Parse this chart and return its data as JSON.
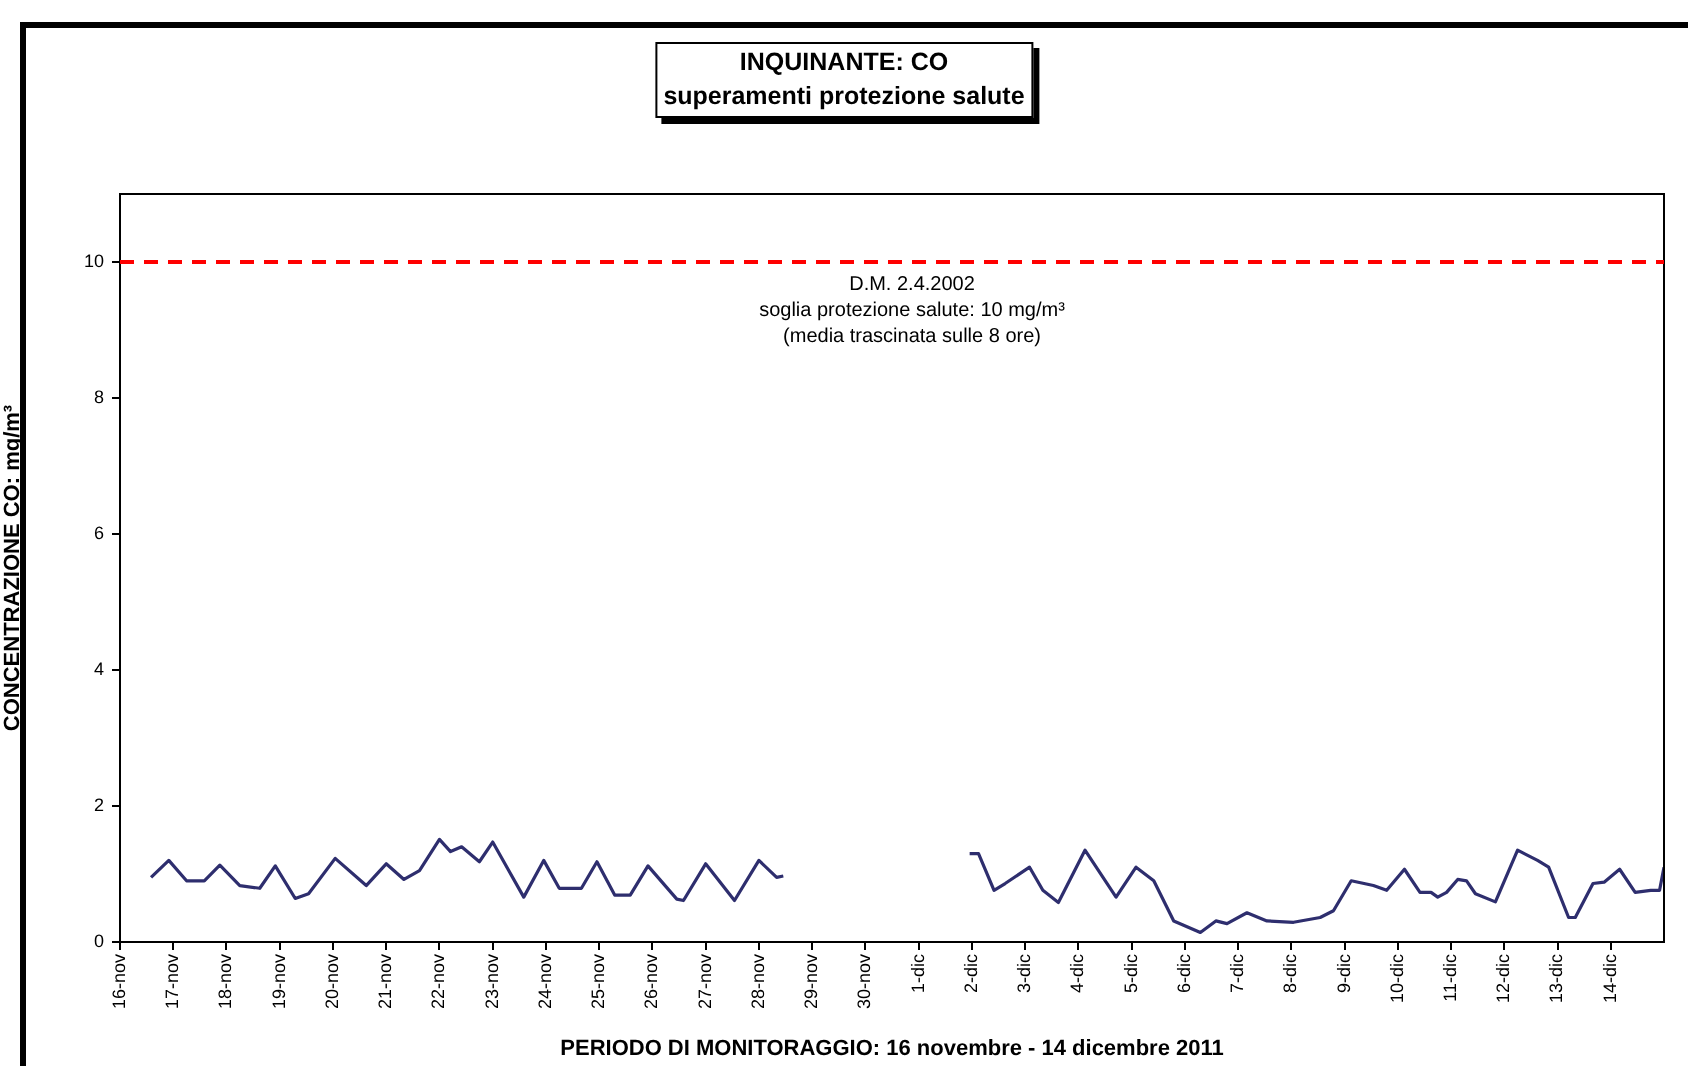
{
  "chart_data": {
    "type": "line",
    "title": "INQUINANTE: CO",
    "subtitle": "superamenti protezione salute",
    "xlabel": "PERIODO DI MONITORAGGIO: 16 novembre - 14 dicembre 2011",
    "ylabel": "CONCENTRAZIONE CO: mg/m³",
    "x": [
      "2011-11-16T14:00",
      "2011-11-16T22:00",
      "2011-11-17T06:00",
      "2011-11-17T14:00",
      "2011-11-17T21:00",
      "2011-11-18T06:00",
      "2011-11-18T15:00",
      "2011-11-18T22:00",
      "2011-11-19T07:00",
      "2011-11-19T13:00",
      "2011-11-20T01:00",
      "2011-11-20T15:00",
      "2011-11-21T00:00",
      "2011-11-21T08:00",
      "2011-11-21T15:00",
      "2011-11-22T00:00",
      "2011-11-22T05:00",
      "2011-11-22T10:00",
      "2011-11-22T18:00",
      "2011-11-23T00:00",
      "2011-11-23T14:00",
      "2011-11-23T23:00",
      "2011-11-24T06:00",
      "2011-11-24T16:00",
      "2011-11-24T23:00",
      "2011-11-25T07:00",
      "2011-11-25T14:00",
      "2011-11-25T22:00",
      "2011-11-26T11:00",
      "2011-11-26T14:00",
      "2011-11-27T00:00",
      "2011-11-27T13:00",
      "2011-11-28T00:00",
      "2011-11-28T08:00",
      "2011-11-28T11:00",
      "2011-11-30T00:00",
      "2011-12-01T23:00",
      "2011-12-02T03:00",
      "2011-12-02T10:00",
      "2011-12-02T15:00",
      "2011-12-03T02:00",
      "2011-12-03T08:00",
      "2011-12-03T15:00",
      "2011-12-04T03:00",
      "2011-12-04T17:00",
      "2011-12-05T02:00",
      "2011-12-05T10:00",
      "2011-12-05T19:00",
      "2011-12-06T07:00",
      "2011-12-06T14:00",
      "2011-12-06T19:00",
      "2011-12-07T04:00",
      "2011-12-07T13:00",
      "2011-12-08T01:00",
      "2011-12-08T13:00",
      "2011-12-08T19:00",
      "2011-12-09T03:00",
      "2011-12-09T13:00",
      "2011-12-09T19:00",
      "2011-12-10T03:00",
      "2011-12-10T10:00",
      "2011-12-10T15:00",
      "2011-12-10T18:00",
      "2011-12-10T22:00",
      "2011-12-11T03:00",
      "2011-12-11T07:00",
      "2011-12-11T11:00",
      "2011-12-11T20:00",
      "2011-12-12T06:00",
      "2011-12-12T15:00",
      "2011-12-12T20:00",
      "2011-12-13T05:00",
      "2011-12-13T08:00",
      "2011-12-13T16:00",
      "2011-12-13T21:00",
      "2011-12-14T04:00",
      "2011-12-14T11:00",
      "2011-12-14T18:00",
      "2011-12-14T22:00",
      "2011-12-15T00:00"
    ],
    "series": [
      {
        "color": "#2e2e6e",
        "values": [
          0.95,
          1.2,
          0.9,
          0.9,
          1.13,
          0.83,
          0.79,
          1.12,
          0.64,
          0.71,
          1.23,
          0.83,
          1.15,
          0.92,
          1.05,
          1.51,
          1.33,
          1.4,
          1.18,
          1.47,
          0.66,
          1.2,
          0.79,
          0.79,
          1.18,
          0.69,
          0.69,
          1.12,
          0.63,
          0.61,
          1.15,
          0.61,
          1.2,
          0.95,
          0.97,
          null,
          1.3,
          1.3,
          0.76,
          0.86,
          1.1,
          0.76,
          0.58,
          1.35,
          0.66,
          1.1,
          0.9,
          0.31,
          0.14,
          0.31,
          0.27,
          0.43,
          0.31,
          0.29,
          0.36,
          0.46,
          0.9,
          0.83,
          0.76,
          1.07,
          0.73,
          0.73,
          0.66,
          0.73,
          0.92,
          0.9,
          0.71,
          0.59,
          1.35,
          1.2,
          1.1,
          0.36,
          0.36,
          0.86,
          0.88,
          1.07,
          0.73,
          0.76,
          0.76,
          1.1
        ]
      }
    ],
    "xlim": [
      "2011-11-16",
      "2011-12-15"
    ],
    "xticks": [
      {
        "value": "2011-11-16",
        "label": "16-nov"
      },
      {
        "value": "2011-11-17",
        "label": "17-nov"
      },
      {
        "value": "2011-11-18",
        "label": "18-nov"
      },
      {
        "value": "2011-11-19",
        "label": "19-nov"
      },
      {
        "value": "2011-11-20",
        "label": "20-nov"
      },
      {
        "value": "2011-11-21",
        "label": "21-nov"
      },
      {
        "value": "2011-11-22",
        "label": "22-nov"
      },
      {
        "value": "2011-11-23",
        "label": "23-nov"
      },
      {
        "value": "2011-11-24",
        "label": "24-nov"
      },
      {
        "value": "2011-11-25",
        "label": "25-nov"
      },
      {
        "value": "2011-11-26",
        "label": "26-nov"
      },
      {
        "value": "2011-11-27",
        "label": "27-nov"
      },
      {
        "value": "2011-11-28",
        "label": "28-nov"
      },
      {
        "value": "2011-11-29",
        "label": "29-nov"
      },
      {
        "value": "2011-11-30",
        "label": "30-nov"
      },
      {
        "value": "2011-12-01",
        "label": "1-dic"
      },
      {
        "value": "2011-12-02",
        "label": "2-dic"
      },
      {
        "value": "2011-12-03",
        "label": "3-dic"
      },
      {
        "value": "2011-12-04",
        "label": "4-dic"
      },
      {
        "value": "2011-12-05",
        "label": "5-dic"
      },
      {
        "value": "2011-12-06",
        "label": "6-dic"
      },
      {
        "value": "2011-12-07",
        "label": "7-dic"
      },
      {
        "value": "2011-12-08",
        "label": "8-dic"
      },
      {
        "value": "2011-12-09",
        "label": "9-dic"
      },
      {
        "value": "2011-12-10",
        "label": "10-dic"
      },
      {
        "value": "2011-12-11",
        "label": "11-dic"
      },
      {
        "value": "2011-12-12",
        "label": "12-dic"
      },
      {
        "value": "2011-12-13",
        "label": "13-dic"
      },
      {
        "value": "2011-12-14",
        "label": "14-dic"
      }
    ],
    "ylim": [
      0,
      11
    ],
    "yticks": [
      0,
      2,
      4,
      6,
      8,
      10
    ],
    "grid": false,
    "legend": false,
    "ref_lines": [
      {
        "axis": "y",
        "value": 10,
        "label": "D.M. 2.4.2002\nsoglia protezione salute: 10 mg/m³\n(media trascinata sulle 8 ore)",
        "color": "#ff0000",
        "line_style": "dashed"
      }
    ]
  }
}
